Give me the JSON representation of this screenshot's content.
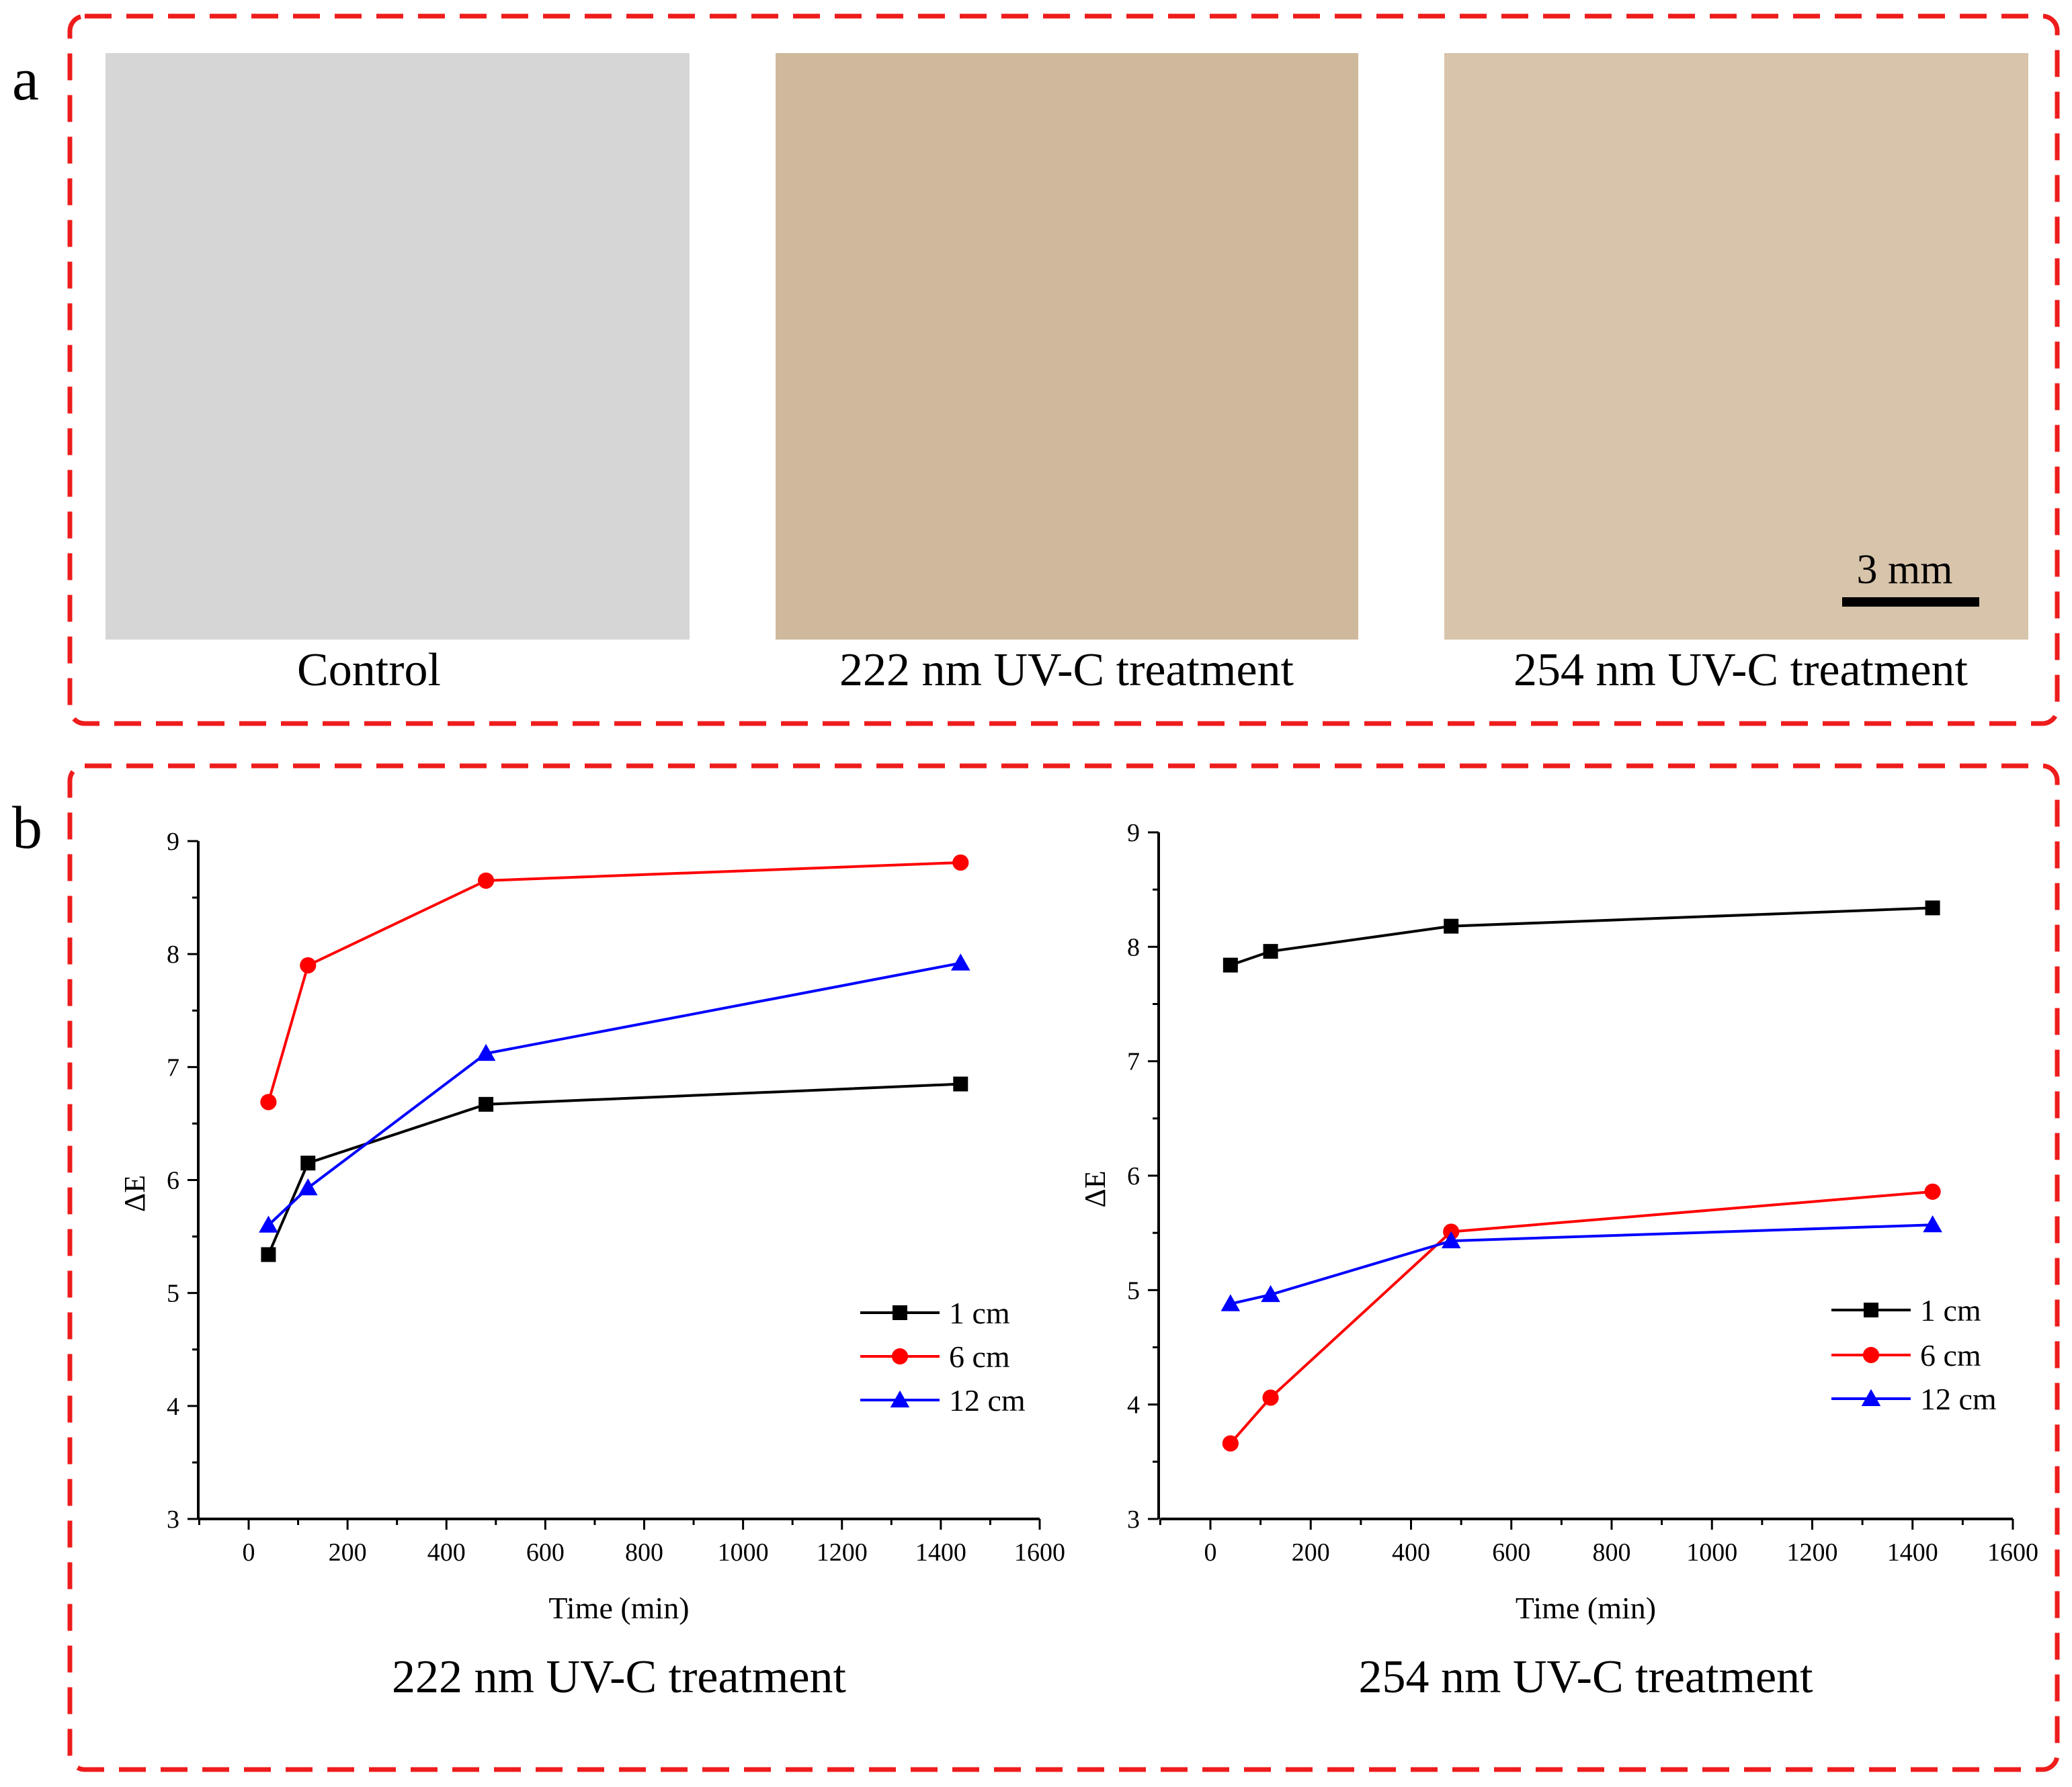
{
  "panel_a": {
    "label": "a",
    "images": [
      {
        "caption": "Control",
        "color": "#d6d6d6"
      },
      {
        "caption": "222 nm UV-C treatment",
        "color": "#cfb99c"
      },
      {
        "caption": "254 nm UV-C treatment",
        "color": "#d7c4aa"
      }
    ],
    "scale_bar": "3 mm"
  },
  "panel_b": {
    "label": "b"
  },
  "frame_color": "#ee1c1c",
  "chart_data": [
    {
      "type": "line",
      "title": "222 nm UV-C treatment",
      "xlabel": "Time (min)",
      "ylabel": "ΔE",
      "xlim": [
        -100,
        1600
      ],
      "ylim": [
        3,
        9
      ],
      "xticks": [
        "0",
        "200",
        "400",
        "600",
        "800",
        "1000",
        "1200",
        "1400",
        "1600"
      ],
      "yticks": [
        "3",
        "4",
        "5",
        "6",
        "7",
        "8",
        "9"
      ],
      "grid": false,
      "legend_position": "bottom-right",
      "x": [
        40,
        120,
        480,
        1440
      ],
      "series": [
        {
          "name": "1 cm",
          "color": "#000000",
          "marker": "square",
          "values": [
            5.34,
            6.15,
            6.67,
            6.85
          ]
        },
        {
          "name": "6 cm",
          "color": "#ff0000",
          "marker": "circle",
          "values": [
            6.69,
            7.9,
            8.65,
            8.81
          ]
        },
        {
          "name": "12 cm",
          "color": "#0000ff",
          "marker": "triangle",
          "values": [
            5.6,
            5.93,
            7.12,
            7.92
          ]
        }
      ]
    },
    {
      "type": "line",
      "title": "254 nm UV-C treatment",
      "xlabel": "Time (min)",
      "ylabel": "ΔE",
      "xlim": [
        -100,
        1600
      ],
      "ylim": [
        3,
        9
      ],
      "xticks": [
        "0",
        "200",
        "400",
        "600",
        "800",
        "1000",
        "1200",
        "1400",
        "1600"
      ],
      "yticks": [
        "3",
        "4",
        "5",
        "6",
        "7",
        "8",
        "9"
      ],
      "grid": false,
      "legend_position": "bottom-right",
      "x": [
        40,
        120,
        480,
        1440
      ],
      "series": [
        {
          "name": "1 cm",
          "color": "#000000",
          "marker": "square",
          "values": [
            7.84,
            7.96,
            8.18,
            8.34
          ]
        },
        {
          "name": "6 cm",
          "color": "#ff0000",
          "marker": "circle",
          "values": [
            3.66,
            4.06,
            5.51,
            5.86
          ]
        },
        {
          "name": "12 cm",
          "color": "#0000ff",
          "marker": "triangle",
          "values": [
            4.88,
            4.96,
            5.43,
            5.57
          ]
        }
      ]
    }
  ]
}
